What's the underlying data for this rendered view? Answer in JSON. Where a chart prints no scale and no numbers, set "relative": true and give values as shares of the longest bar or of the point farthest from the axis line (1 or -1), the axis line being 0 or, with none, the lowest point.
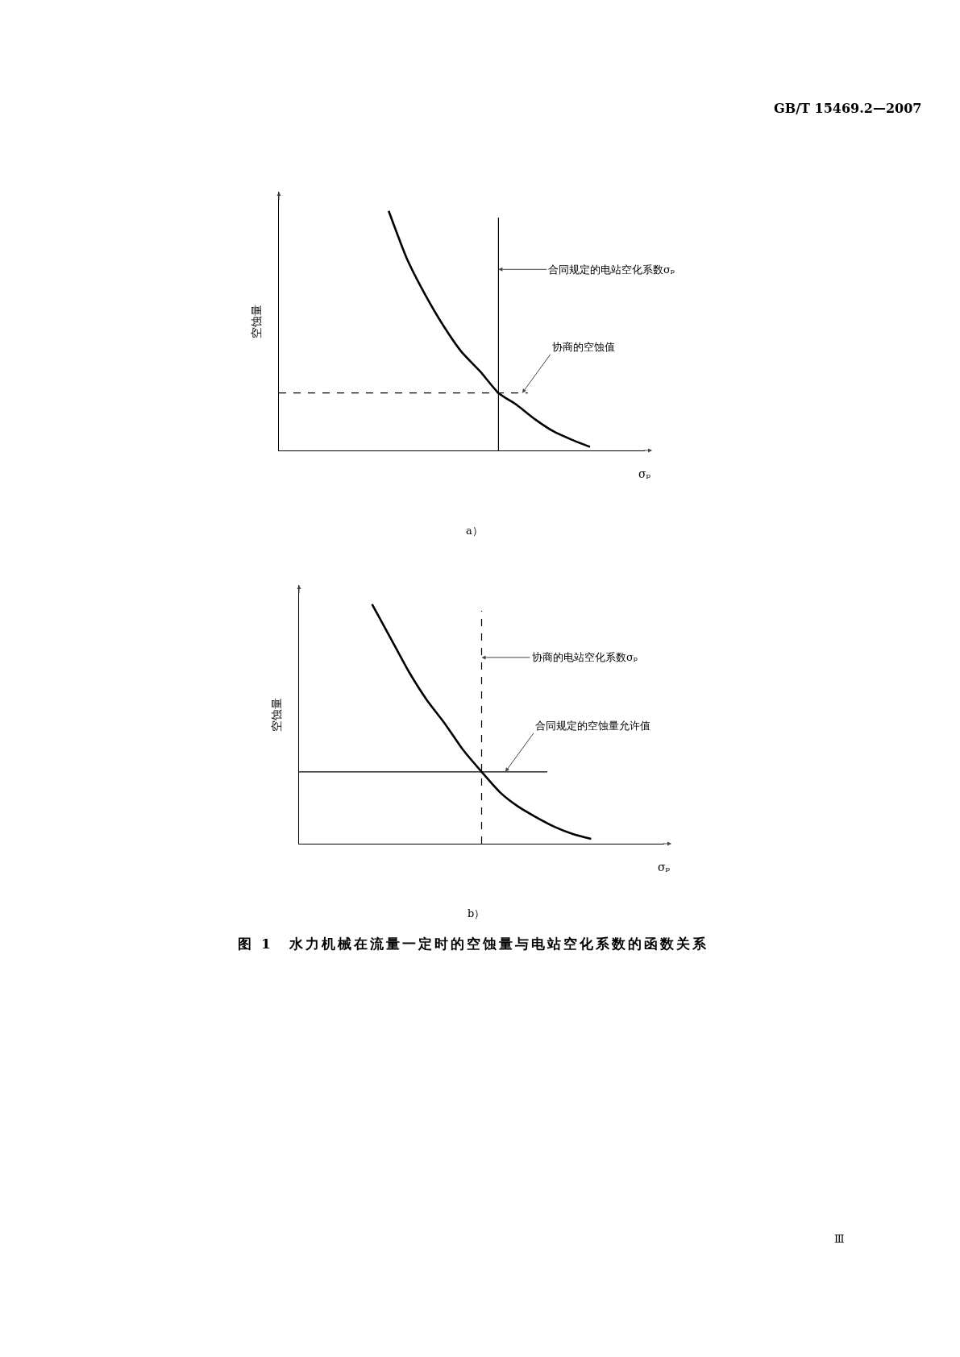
{
  "chart_data": [
    {
      "type": "line",
      "relative": true,
      "xlabel": "σₚ",
      "ylabel": "空蚀量",
      "categories": [
        null,
        null,
        null,
        null,
        null,
        null,
        null,
        null,
        null,
        null,
        null,
        null,
        null,
        null,
        null,
        null,
        null,
        null,
        null,
        null,
        null
      ],
      "series": [
        {
          "color": "#000000",
          "values": [
            null,
            null,
            null,
            null,
            null,
            null,
            1,
            0.8,
            0.65,
            0.52,
            0.41,
            0.33,
            0.24,
            0.19,
            0.13,
            0.08,
            0.045,
            0.015,
            null,
            null,
            null
          ]
        }
      ],
      "ref_lines": [
        {
          "axis": "y",
          "value": 0.24,
          "label": "协商的空蚀值",
          "line_style": "dashed",
          "color": "#000000"
        }
      ],
      "annotations": [
        "GB/T 15469.2—2007",
        "合同规定的电站空化系数σₚ",
        "a）"
      ]
    },
    {
      "type": "line",
      "relative": true,
      "xlabel": "σₚ",
      "ylabel": "空蚀量",
      "categories": [
        null,
        null,
        null,
        null,
        null,
        null,
        null,
        null,
        null,
        null,
        null,
        null,
        null,
        null,
        null,
        null,
        null,
        null,
        null,
        null,
        null
      ],
      "series": [
        {
          "color": "#000000",
          "values": [
            null,
            null,
            null,
            null,
            1,
            0.86,
            0.72,
            0.6,
            0.5,
            0.39,
            0.3,
            0.215,
            0.155,
            0.11,
            0.07,
            0.04,
            0.02,
            null,
            null,
            null,
            null
          ]
        }
      ],
      "ref_lines": [
        {
          "axis": "y",
          "value": 0.3,
          "label": "合同规定的空蚀量允许值",
          "line_style": "solid",
          "color": "#000000"
        }
      ],
      "annotations": [
        "协商的电站空化系数σₚ",
        "b）",
        "图 1　水力机械在流量一定时的空蚀量与电站空化系数的函数关系",
        "Ⅲ"
      ]
    }
  ]
}
